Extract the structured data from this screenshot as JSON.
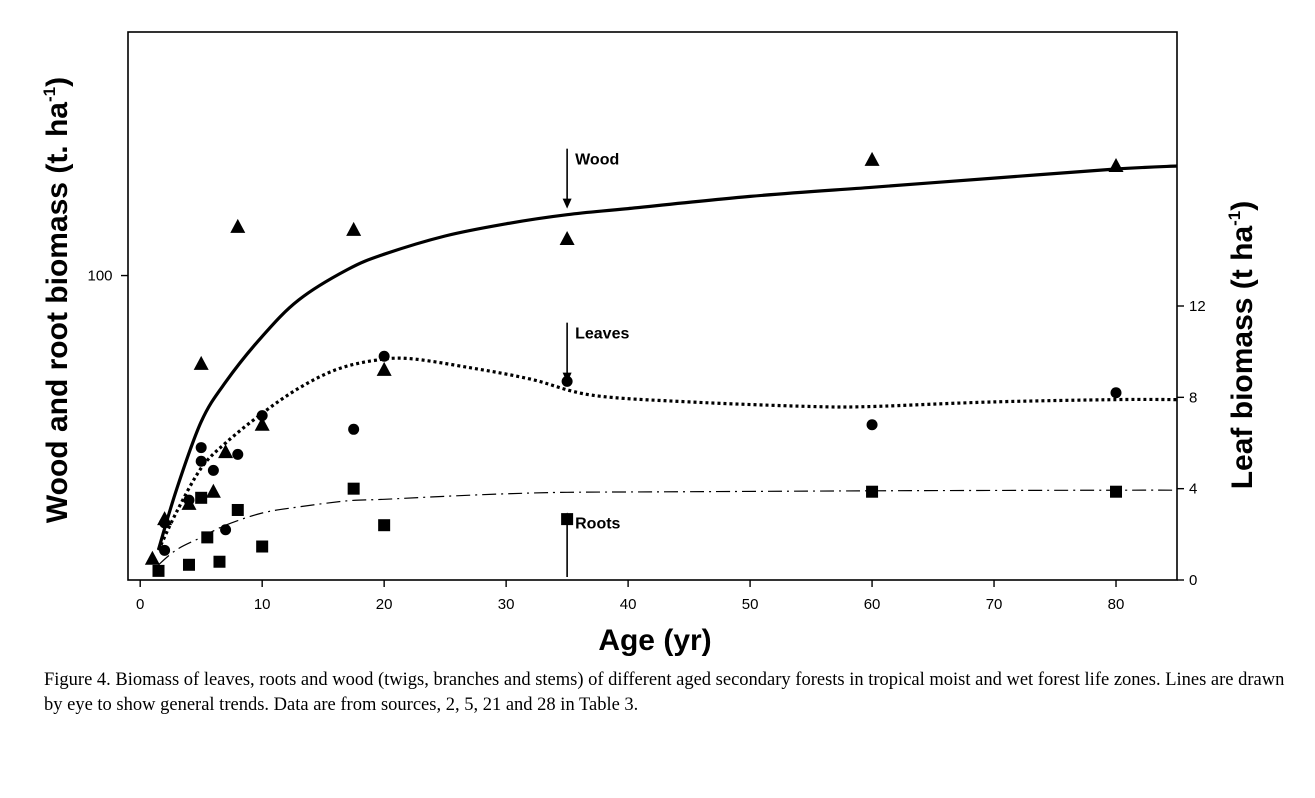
{
  "chart_data": {
    "type": "scatter",
    "xlabel": "Age (yr)",
    "ylabel": "Wood and root biomass (t. ha",
    "ylabel_sup": "-1",
    "ylabel_close": ")",
    "y2label": "Leaf biomass (t ha",
    "y2label_sup": "-1",
    "y2label_close": ")",
    "xlim": [
      -1,
      85
    ],
    "ylim": [
      0,
      180
    ],
    "y2lim": [
      0,
      24
    ],
    "x_ticks": [
      0,
      10,
      20,
      30,
      40,
      50,
      60,
      70,
      80
    ],
    "y_ticks": [
      100
    ],
    "y2_ticks": [
      0,
      4,
      8,
      12
    ],
    "grid": false,
    "series": [
      {
        "marker": "triangle",
        "axis": "left",
        "points": [
          [
            1,
            7
          ],
          [
            2,
            20
          ],
          [
            4,
            25
          ],
          [
            5,
            71
          ],
          [
            6,
            29
          ],
          [
            7,
            42
          ],
          [
            8,
            116
          ],
          [
            10,
            51
          ],
          [
            17.5,
            115
          ],
          [
            20,
            69
          ],
          [
            35,
            112
          ],
          [
            60,
            138
          ],
          [
            80,
            136
          ]
        ]
      },
      {
        "marker": "circle",
        "axis": "right",
        "points": [
          [
            2,
            2.5
          ],
          [
            2,
            1.3
          ],
          [
            4,
            3.5
          ],
          [
            5,
            5.8
          ],
          [
            5,
            5.2
          ],
          [
            6,
            4.8
          ],
          [
            7,
            2.2
          ],
          [
            8,
            5.5
          ],
          [
            10,
            7.2
          ],
          [
            17.5,
            6.6
          ],
          [
            20,
            9.8
          ],
          [
            35,
            8.7
          ],
          [
            60,
            6.8
          ],
          [
            80,
            8.2
          ]
        ]
      },
      {
        "marker": "square",
        "axis": "left",
        "points": [
          [
            1.5,
            3
          ],
          [
            4,
            5
          ],
          [
            5,
            27
          ],
          [
            5.5,
            14
          ],
          [
            6.5,
            6
          ],
          [
            8,
            23
          ],
          [
            10,
            11
          ],
          [
            17.5,
            30
          ],
          [
            20,
            18
          ],
          [
            35,
            20
          ],
          [
            60,
            29
          ],
          [
            80,
            29
          ]
        ]
      }
    ],
    "trend_lines": [
      {
        "name": "Wood",
        "style": "solid-thick",
        "axis": "left",
        "points": [
          [
            1.5,
            10
          ],
          [
            3,
            30
          ],
          [
            5,
            52
          ],
          [
            7,
            65
          ],
          [
            10,
            80
          ],
          [
            13,
            92
          ],
          [
            17,
            102
          ],
          [
            20,
            107
          ],
          [
            25,
            113
          ],
          [
            30,
            117
          ],
          [
            35,
            120
          ],
          [
            40,
            122
          ],
          [
            50,
            126
          ],
          [
            60,
            129
          ],
          [
            70,
            132
          ],
          [
            80,
            135
          ],
          [
            85,
            136
          ]
        ]
      },
      {
        "name": "Leaves",
        "style": "dotted",
        "axis": "right",
        "points": [
          [
            1.5,
            1.3
          ],
          [
            3,
            3.0
          ],
          [
            5,
            4.9
          ],
          [
            7,
            6.0
          ],
          [
            10,
            7.3
          ],
          [
            13,
            8.4
          ],
          [
            16,
            9.2
          ],
          [
            19,
            9.6
          ],
          [
            22,
            9.7
          ],
          [
            27,
            9.3
          ],
          [
            32,
            8.8
          ],
          [
            37,
            8.1
          ],
          [
            45,
            7.8
          ],
          [
            55,
            7.6
          ],
          [
            60,
            7.6
          ],
          [
            70,
            7.8
          ],
          [
            80,
            7.9
          ],
          [
            85,
            7.9
          ]
        ]
      },
      {
        "name": "Roots",
        "style": "dash-dot",
        "axis": "left",
        "points": [
          [
            1.5,
            5
          ],
          [
            3,
            10
          ],
          [
            5,
            14
          ],
          [
            7,
            18
          ],
          [
            10,
            22
          ],
          [
            13,
            24
          ],
          [
            17,
            26
          ],
          [
            20,
            26.5
          ],
          [
            25,
            27.5
          ],
          [
            30,
            28.3
          ],
          [
            35,
            28.8
          ],
          [
            45,
            29
          ],
          [
            60,
            29.3
          ],
          [
            80,
            29.5
          ],
          [
            85,
            29.5
          ]
        ]
      }
    ],
    "annotations": [
      {
        "label": "Wood",
        "x": 35,
        "arrow": "down"
      },
      {
        "label": "Leaves",
        "x": 35,
        "arrow": "down"
      },
      {
        "label": "Roots",
        "x": 35,
        "arrow": "up"
      }
    ]
  },
  "caption": "Figure 4. Biomass of leaves, roots and wood (twigs, branches and stems) of different aged secondary forests in tropical moist and wet forest life zones. Lines are drawn by eye to show general trends. Data are from sources, 2, 5, 21 and 28 in Table 3."
}
